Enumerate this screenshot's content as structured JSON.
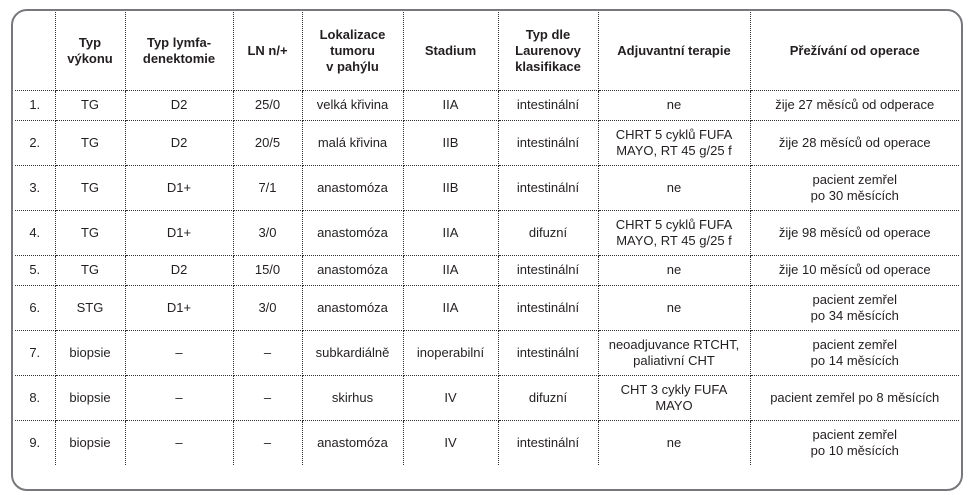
{
  "colors": {
    "text": "#231f20",
    "inner_border": "#2e2e2e",
    "outer_border": "#76787b",
    "background": "#ffffff"
  },
  "table": {
    "columns": [
      "",
      "Typ\nvýkonu",
      "Typ lymfa-\ndenektomie",
      "LN n/+",
      "Lokalizace\ntumoru\nv pahýlu",
      "Stadium",
      "Typ dle\nLaurenovy\nklasifikace",
      "Adjuvantní terapie",
      "Přežívání od operace"
    ],
    "col_names": [
      "cell-row-number",
      "cell-typ-vykonu",
      "cell-typ-lymfadenektomie",
      "cell-ln",
      "cell-lokalizace-tumoru",
      "cell-stadium",
      "cell-laurenova-klasifikace",
      "cell-adjuvantni-terapie",
      "cell-prezivani-od-operace"
    ],
    "rows": [
      {
        "short": true,
        "cells": [
          "1.",
          "TG",
          "D2",
          "25/0",
          "velká křivina",
          "IIA",
          "intestinální",
          "ne",
          "žije 27 měsíců od odperace"
        ]
      },
      {
        "short": false,
        "cells": [
          "2.",
          "TG",
          "D2",
          "20/5",
          "malá křivina",
          "IIB",
          "intestinální",
          "CHRT 5 cyklů FUFA\nMAYO, RT 45 g/25 f",
          "žije 28 měsíců od operace"
        ]
      },
      {
        "short": false,
        "cells": [
          "3.",
          "TG",
          "D1+",
          "7/1",
          "anastomóza",
          "IIB",
          "intestinální",
          "ne",
          "pacient zemřel\npo 30 měsících"
        ]
      },
      {
        "short": false,
        "cells": [
          "4.",
          "TG",
          "D1+",
          "3/0",
          "anastomóza",
          "IIA",
          "difuzní",
          "CHRT 5 cyklů FUFA\nMAYO, RT 45 g/25 f",
          "žije 98 měsíců od operace"
        ]
      },
      {
        "short": true,
        "cells": [
          "5.",
          "TG",
          "D2",
          "15/0",
          "anastomóza",
          "IIA",
          "intestinální",
          "ne",
          "žije 10 měsíců od operace"
        ]
      },
      {
        "short": false,
        "cells": [
          "6.",
          "STG",
          "D1+",
          "3/0",
          "anastomóza",
          "IIA",
          "intestinální",
          "ne",
          "pacient zemřel\npo 34 měsících"
        ]
      },
      {
        "short": false,
        "cells": [
          "7.",
          "biopsie",
          "–",
          "–",
          "subkardiálně",
          "inoperabilní",
          "intestinální",
          "neoadjuvance RTCHT,\npaliativní CHT",
          "pacient zemřel\npo 14 měsících"
        ]
      },
      {
        "short": false,
        "cells": [
          "8.",
          "biopsie",
          "–",
          "–",
          "skirhus",
          "IV",
          "difuzní",
          "CHT 3 cykly FUFA\nMAYO",
          "pacient zemřel po 8 měsících"
        ]
      },
      {
        "short": false,
        "cells": [
          "9.",
          "biopsie",
          "–",
          "–",
          "anastomóza",
          "IV",
          "intestinální",
          "ne",
          "pacient zemřel\npo 10 měsících"
        ]
      }
    ]
  }
}
